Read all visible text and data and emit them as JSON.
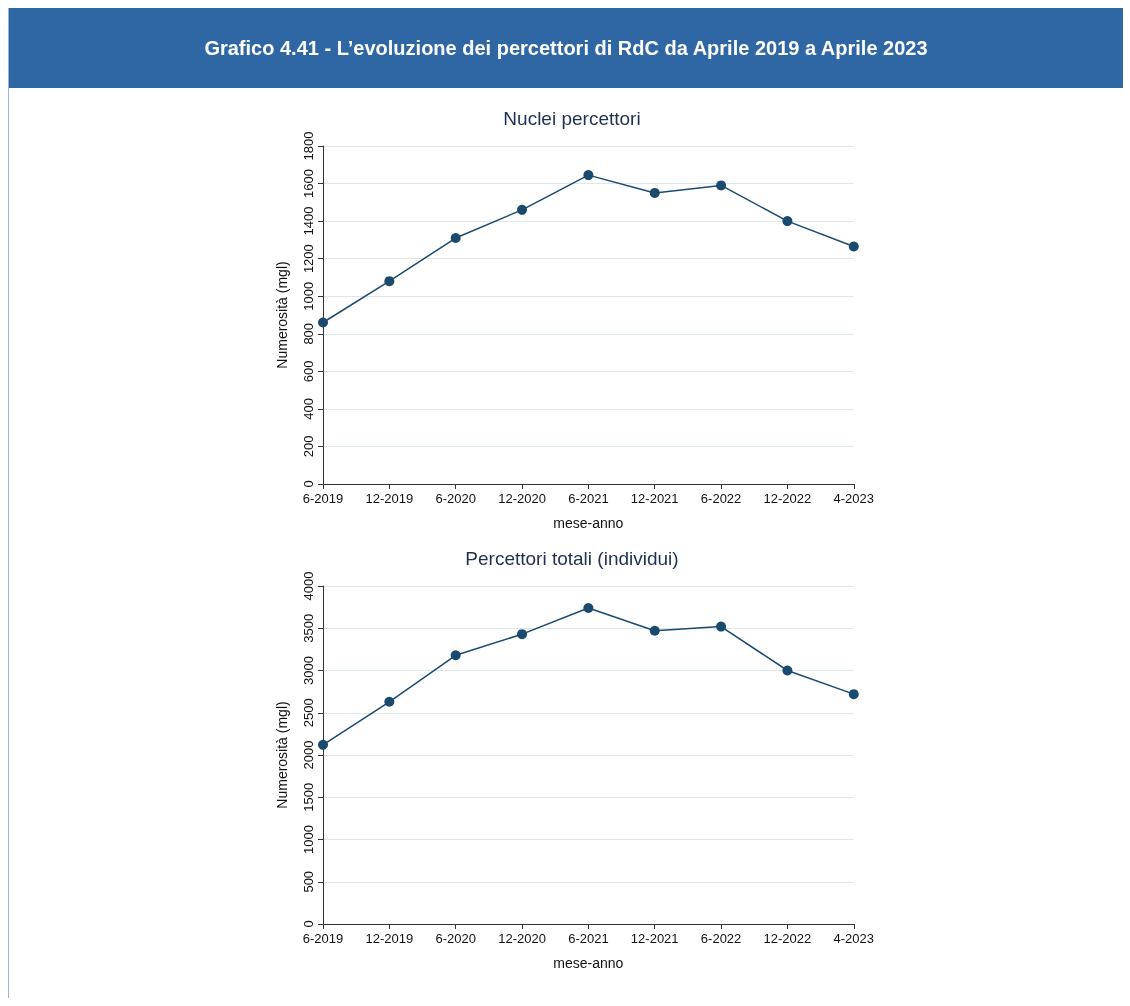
{
  "chart_data": [
    {
      "type": "line",
      "title": "Nuclei percettori",
      "annotations": [
        "Grafico 4.41 - L’evoluzione dei percettori di RdC da Aprile 2019 a Aprile 2023"
      ],
      "xlabel": "mese-anno",
      "ylabel": "Numerosità (mgl)",
      "categories": [
        "6-2019",
        "12-2019",
        "6-2020",
        "12-2020",
        "6-2021",
        "12-2021",
        "6-2022",
        "12-2022",
        "4-2023"
      ],
      "series": [
        {
          "color": "#1a4a6e",
          "values": [
            860,
            1080,
            1310,
            1460,
            1645,
            1550,
            1590,
            1400,
            1265
          ]
        }
      ],
      "ylim": [
        0,
        1800
      ],
      "yticks": [
        0,
        200,
        400,
        600,
        800,
        1000,
        1200,
        1400,
        1600,
        1800
      ],
      "grid": "y",
      "marker": "circle",
      "line_style": "solid"
    },
    {
      "type": "line",
      "title": "Percettori totali (individui)",
      "xlabel": "mese-anno",
      "ylabel": "Numerosità (mgl)",
      "categories": [
        "6-2019",
        "12-2019",
        "6-2020",
        "12-2020",
        "6-2021",
        "12-2021",
        "6-2022",
        "12-2022",
        "4-2023"
      ],
      "series": [
        {
          "color": "#1a4a6e",
          "values": [
            2120,
            2630,
            3180,
            3430,
            3740,
            3470,
            3520,
            3000,
            2720
          ]
        }
      ],
      "ylim": [
        0,
        4000
      ],
      "yticks": [
        0,
        500,
        1000,
        1500,
        2000,
        2500,
        3000,
        3500,
        4000
      ],
      "grid": "y",
      "marker": "circle",
      "line_style": "solid"
    }
  ]
}
